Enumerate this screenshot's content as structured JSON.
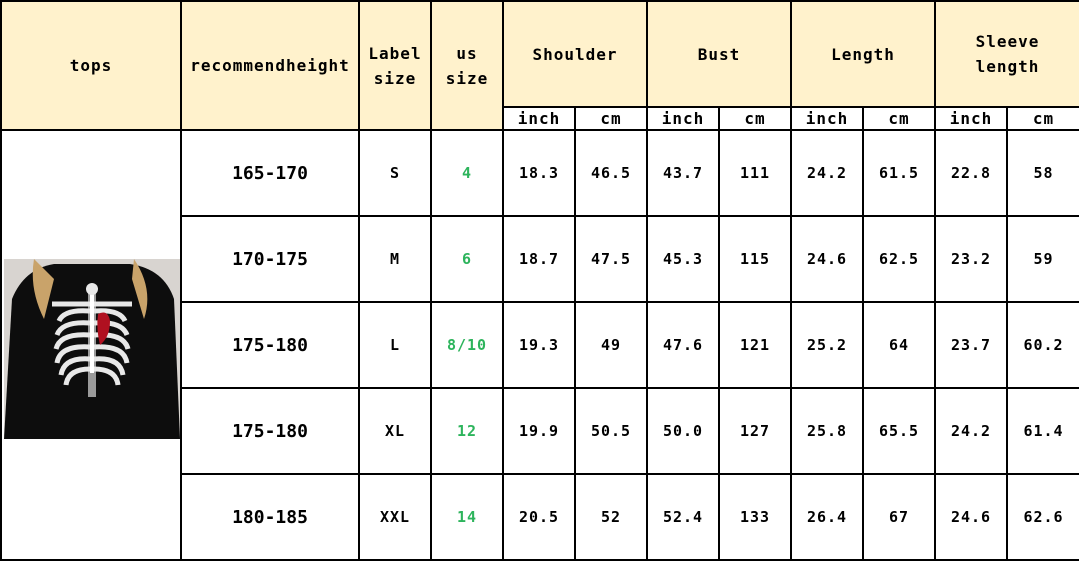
{
  "header": {
    "tops": "tops",
    "recommend_height": "recommendheight",
    "label_size": [
      "Label",
      "size"
    ],
    "us_size": [
      "us",
      "size"
    ],
    "groups": [
      {
        "label": [
          "Shoulder"
        ]
      },
      {
        "label": [
          "Bust"
        ]
      },
      {
        "label": [
          "Length"
        ]
      },
      {
        "label": [
          "Sleeve",
          "length"
        ]
      }
    ],
    "units": [
      "inch",
      "cm",
      "inch",
      "cm",
      "inch",
      "cm",
      "inch",
      "cm"
    ]
  },
  "colors": {
    "header_bg": "#fff2cc",
    "us_size_text": "#2db45c"
  },
  "product_image": "black sweatshirt with skeleton ribcage and red heart print",
  "rows": [
    {
      "height": "165-170",
      "label": "S",
      "us": "4",
      "vals": [
        "18.3",
        "46.5",
        "43.7",
        "111",
        "24.2",
        "61.5",
        "22.8",
        "58"
      ]
    },
    {
      "height": "170-175",
      "label": "M",
      "us": "6",
      "vals": [
        "18.7",
        "47.5",
        "45.3",
        "115",
        "24.6",
        "62.5",
        "23.2",
        "59"
      ]
    },
    {
      "height": "175-180",
      "label": "L",
      "us": "8/10",
      "vals": [
        "19.3",
        "49",
        "47.6",
        "121",
        "25.2",
        "64",
        "23.7",
        "60.2"
      ]
    },
    {
      "height": "175-180",
      "label": "XL",
      "us": "12",
      "vals": [
        "19.9",
        "50.5",
        "50.0",
        "127",
        "25.8",
        "65.5",
        "24.2",
        "61.4"
      ]
    },
    {
      "height": "180-185",
      "label": "XXL",
      "us": "14",
      "vals": [
        "20.5",
        "52",
        "52.4",
        "133",
        "26.4",
        "67",
        "24.6",
        "62.6"
      ]
    }
  ]
}
